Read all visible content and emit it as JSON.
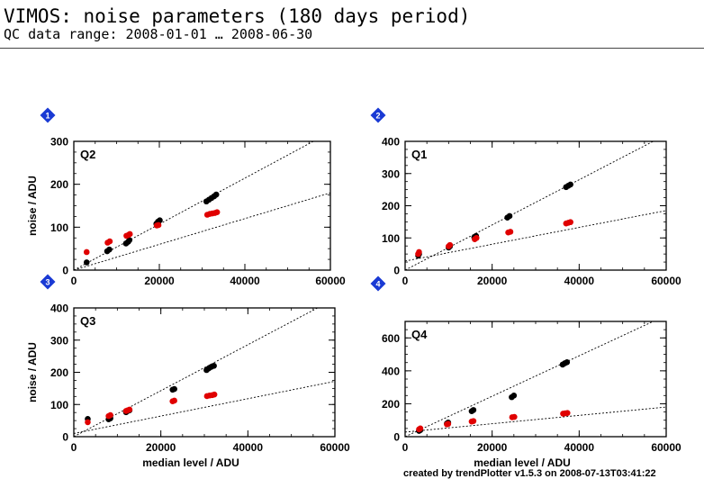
{
  "header": {
    "title": "VIMOS: noise parameters (180 days period)",
    "subtitle": "QC data range: 2008-01-01 … 2008-06-30"
  },
  "footer": {
    "credit": "created by trendPlotter v1.5.3 on 2008-07-13T03:41:22"
  },
  "colors": {
    "black_series": "#000000",
    "red_series": "#e00000",
    "badge": "#1a3ad4"
  },
  "chart_data": [
    {
      "type": "scatter",
      "badge": "1",
      "quadrant": "Q2",
      "xlabel": "",
      "ylabel": "noise / ADU",
      "xlim": [
        0,
        60000
      ],
      "ylim": [
        0,
        300
      ],
      "xticks": [
        0,
        20000,
        40000,
        60000
      ],
      "yticks": [
        0,
        100,
        200,
        300
      ],
      "series": [
        {
          "color": "black",
          "points": [
            [
              3000,
              18
            ],
            [
              7800,
              44
            ],
            [
              8300,
              48
            ],
            [
              12200,
              62
            ],
            [
              12700,
              66
            ],
            [
              13000,
              70
            ],
            [
              19300,
              108
            ],
            [
              19700,
              113
            ],
            [
              20100,
              116
            ],
            [
              31000,
              160
            ],
            [
              31600,
              164
            ],
            [
              32200,
              168
            ],
            [
              32800,
              172
            ],
            [
              33300,
              176
            ]
          ]
        },
        {
          "color": "red",
          "points": [
            [
              3000,
              42
            ],
            [
              7900,
              64
            ],
            [
              8400,
              67
            ],
            [
              12300,
              80
            ],
            [
              12800,
              82
            ],
            [
              13100,
              84
            ],
            [
              19400,
              104
            ],
            [
              19800,
              105
            ],
            [
              31200,
              129
            ],
            [
              31800,
              131
            ],
            [
              32400,
              132
            ],
            [
              33000,
              133
            ],
            [
              33500,
              135
            ]
          ]
        }
      ],
      "fits": [
        {
          "color": "black",
          "from": [
            0,
            0
          ],
          "to": [
            56000,
            300
          ]
        },
        {
          "color": "black",
          "from": [
            0,
            0
          ],
          "to": [
            60000,
            180
          ]
        }
      ]
    },
    {
      "type": "scatter",
      "badge": "2",
      "quadrant": "Q1",
      "xlabel": "",
      "ylabel": "",
      "xlim": [
        0,
        60000
      ],
      "ylim": [
        0,
        400
      ],
      "xticks": [
        0,
        20000,
        40000,
        60000
      ],
      "yticks": [
        0,
        100,
        200,
        300,
        400
      ],
      "series": [
        {
          "color": "black",
          "points": [
            [
              3000,
              45
            ],
            [
              3200,
              50
            ],
            [
              10000,
              70
            ],
            [
              10300,
              74
            ],
            [
              15900,
              102
            ],
            [
              16300,
              106
            ],
            [
              23500,
              163
            ],
            [
              24000,
              168
            ],
            [
              37000,
              258
            ],
            [
              37500,
              262
            ],
            [
              38000,
              266
            ]
          ]
        },
        {
          "color": "red",
          "points": [
            [
              3000,
              50
            ],
            [
              3200,
              56
            ],
            [
              10000,
              74
            ],
            [
              10300,
              78
            ],
            [
              16000,
              96
            ],
            [
              16400,
              100
            ],
            [
              23700,
              117
            ],
            [
              24200,
              119
            ],
            [
              37000,
              145
            ],
            [
              37500,
              147
            ],
            [
              38000,
              149
            ]
          ]
        }
      ],
      "fits": [
        {
          "color": "black",
          "from": [
            0,
            0
          ],
          "to": [
            57000,
            400
          ]
        },
        {
          "color": "black",
          "from": [
            0,
            28
          ],
          "to": [
            60000,
            185
          ]
        }
      ]
    },
    {
      "type": "scatter",
      "badge": "3",
      "quadrant": "Q3",
      "xlabel": "median level / ADU",
      "ylabel": "noise / ADU",
      "xlim": [
        0,
        60000
      ],
      "ylim": [
        0,
        400
      ],
      "xticks": [
        0,
        20000,
        40000,
        60000
      ],
      "yticks": [
        0,
        100,
        200,
        300,
        400
      ],
      "series": [
        {
          "color": "black",
          "points": [
            [
              3200,
              55
            ],
            [
              8000,
              54
            ],
            [
              8400,
              57
            ],
            [
              12000,
              76
            ],
            [
              12400,
              80
            ],
            [
              12800,
              82
            ],
            [
              22700,
              146
            ],
            [
              23100,
              148
            ],
            [
              30500,
              207
            ],
            [
              31000,
              212
            ],
            [
              31600,
              217
            ],
            [
              32200,
              220
            ]
          ]
        },
        {
          "color": "red",
          "points": [
            [
              3200,
              45
            ],
            [
              8000,
              64
            ],
            [
              8400,
              67
            ],
            [
              12000,
              80
            ],
            [
              12400,
              82
            ],
            [
              12800,
              84
            ],
            [
              22700,
              110
            ],
            [
              23100,
              112
            ],
            [
              30600,
              126
            ],
            [
              31200,
              128
            ],
            [
              31800,
              129
            ],
            [
              32300,
              131
            ]
          ]
        }
      ],
      "fits": [
        {
          "color": "black",
          "from": [
            0,
            0
          ],
          "to": [
            56000,
            400
          ]
        },
        {
          "color": "black",
          "from": [
            0,
            10
          ],
          "to": [
            60000,
            172
          ]
        }
      ]
    },
    {
      "type": "scatter",
      "badge": "4",
      "quadrant": "Q4",
      "xlabel": "median level / ADU",
      "ylabel": "",
      "xlim": [
        0,
        60000
      ],
      "ylim": [
        0,
        700
      ],
      "xticks": [
        0,
        20000,
        40000,
        60000
      ],
      "yticks": [
        0,
        200,
        400,
        600
      ],
      "series": [
        {
          "color": "black",
          "points": [
            [
              3200,
              35
            ],
            [
              3500,
              40
            ],
            [
              9600,
              80
            ],
            [
              9900,
              86
            ],
            [
              15300,
              155
            ],
            [
              15700,
              162
            ],
            [
              24500,
              240
            ],
            [
              25000,
              250
            ],
            [
              36200,
              438
            ],
            [
              36700,
              446
            ],
            [
              37200,
              452
            ]
          ]
        },
        {
          "color": "red",
          "points": [
            [
              3200,
              45
            ],
            [
              3500,
              50
            ],
            [
              9600,
              75
            ],
            [
              9900,
              78
            ],
            [
              15300,
              92
            ],
            [
              15700,
              95
            ],
            [
              24600,
              118
            ],
            [
              25100,
              120
            ],
            [
              36300,
              140
            ],
            [
              36800,
              142
            ],
            [
              37300,
              144
            ]
          ]
        }
      ],
      "fits": [
        {
          "color": "black",
          "from": [
            0,
            0
          ],
          "to": [
            57000,
            700
          ]
        },
        {
          "color": "black",
          "from": [
            0,
            28
          ],
          "to": [
            60000,
            180
          ]
        }
      ]
    }
  ]
}
